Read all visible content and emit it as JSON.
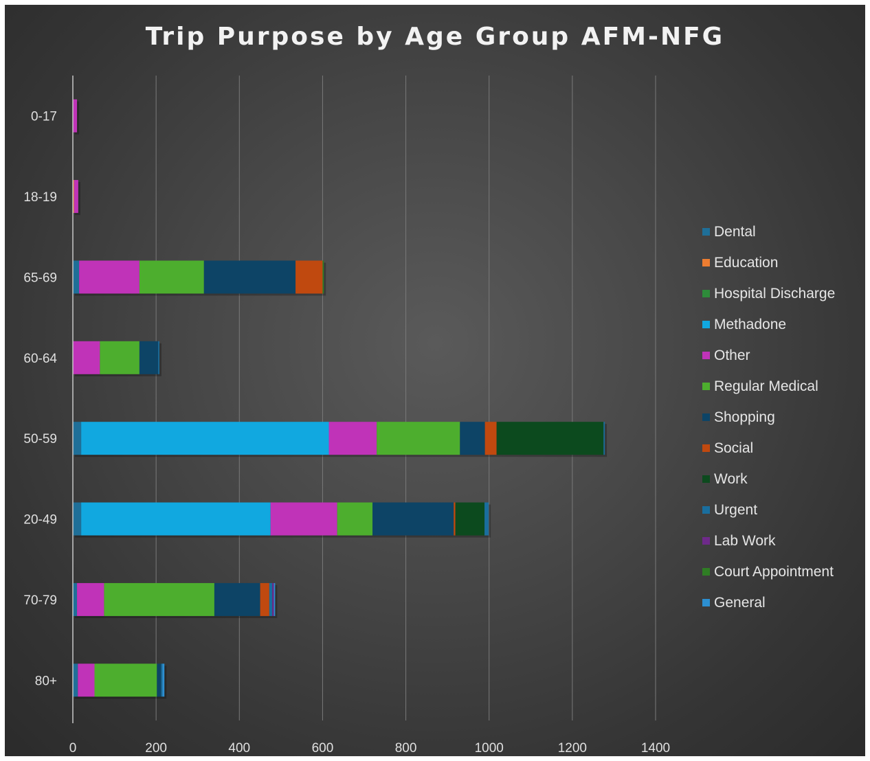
{
  "chart_data": {
    "type": "bar",
    "orientation": "horizontal",
    "stacked": true,
    "title": "Trip Purpose by Age Group AFM-NFG",
    "xlabel": "",
    "ylabel": "",
    "xlim": [
      0,
      1400
    ],
    "x_ticks": [
      "0",
      "200",
      "400",
      "600",
      "800",
      "1000",
      "1200",
      "1400"
    ],
    "grid": "vertical",
    "legend_position": "right",
    "categories": [
      "0-17",
      "18-19",
      "65-69",
      "60-64",
      "50-59",
      "20-49",
      "70-79",
      "80+"
    ],
    "series": [
      {
        "name": "Dental",
        "color": "#1f6f98",
        "values": [
          0,
          0,
          15,
          0,
          20,
          20,
          10,
          12
        ]
      },
      {
        "name": "Education",
        "color": "#ed7d31",
        "values": [
          0,
          3,
          0,
          0,
          0,
          0,
          0,
          0
        ]
      },
      {
        "name": "Hospital Discharge",
        "color": "#2e8b3a",
        "values": [
          0,
          0,
          0,
          0,
          0,
          0,
          0,
          0
        ]
      },
      {
        "name": "Methadone",
        "color": "#11a8e0",
        "values": [
          0,
          0,
          0,
          0,
          595,
          455,
          0,
          0
        ]
      },
      {
        "name": "Other",
        "color": "#c033b8",
        "values": [
          10,
          10,
          145,
          65,
          115,
          160,
          65,
          40
        ]
      },
      {
        "name": "Regular Medical",
        "color": "#4dae2e",
        "values": [
          0,
          0,
          155,
          95,
          200,
          85,
          265,
          150
        ]
      },
      {
        "name": "Shopping",
        "color": "#0d4466",
        "values": [
          0,
          0,
          220,
          45,
          60,
          195,
          110,
          10
        ]
      },
      {
        "name": "Social",
        "color": "#c0490f",
        "values": [
          0,
          0,
          65,
          0,
          28,
          4,
          22,
          0
        ]
      },
      {
        "name": "Work",
        "color": "#0c4a1e",
        "values": [
          0,
          0,
          0,
          0,
          257,
          70,
          0,
          0
        ]
      },
      {
        "name": "Urgent",
        "color": "#1a6e9e",
        "values": [
          0,
          0,
          0,
          3,
          3,
          10,
          7,
          3
        ]
      },
      {
        "name": "Lab Work",
        "color": "#6e2a8a",
        "values": [
          0,
          0,
          0,
          0,
          0,
          0,
          4,
          0
        ]
      },
      {
        "name": "Court Appointment",
        "color": "#2f7d24",
        "values": [
          0,
          0,
          3,
          0,
          0,
          0,
          0,
          0
        ]
      },
      {
        "name": "General",
        "color": "#2c8fd1",
        "values": [
          0,
          0,
          0,
          0,
          0,
          0,
          3,
          5
        ]
      }
    ]
  }
}
